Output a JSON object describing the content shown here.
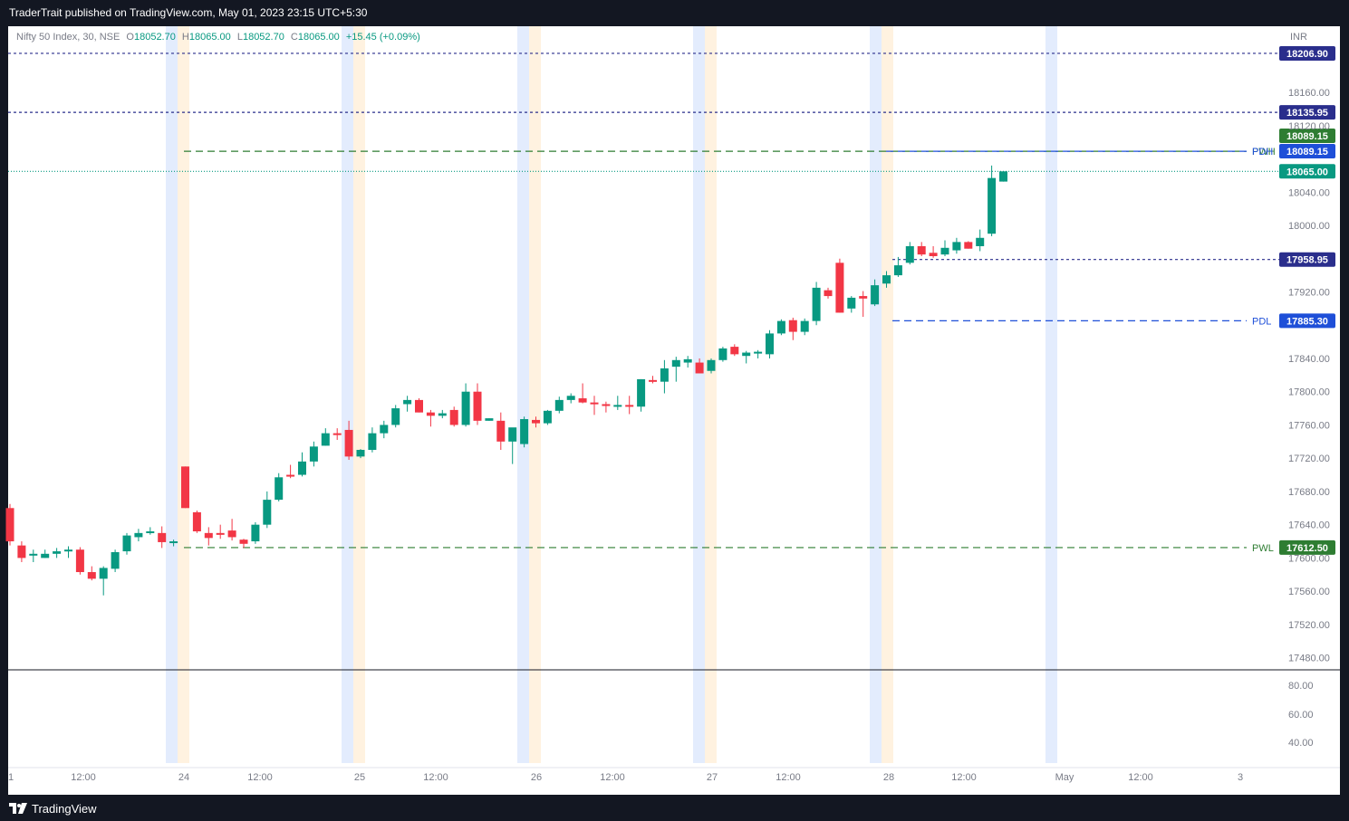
{
  "header": {
    "publisher_line": "TraderTrait published on TradingView.com, May 01, 2023 23:15 UTC+5:30"
  },
  "footer": {
    "brand": "TradingView",
    "logo_icon": "tradingview-logo-icon"
  },
  "legend": {
    "symbol": "Nifty 50 Index, 30, NSE",
    "open_label": "O",
    "open": "18052.70",
    "high_label": "H",
    "high": "18065.00",
    "low_label": "L",
    "low": "18052.70",
    "close_label": "C",
    "close": "18065.00",
    "change": "+15.45 (+0.09%)"
  },
  "price_scale": {
    "currency": "INR",
    "ticks": [
      "18160.00",
      "18120.00",
      "18040.00",
      "18000.00",
      "17920.00",
      "17840.00",
      "17800.00",
      "17760.00",
      "17720.00",
      "17680.00",
      "17640.00",
      "17600.00",
      "17560.00",
      "17520.00",
      "17480.00"
    ]
  },
  "oscillator_scale": {
    "ticks": [
      "80.00",
      "60.00",
      "40.00"
    ]
  },
  "time_axis": {
    "labels": [
      "1",
      "12:00",
      "24",
      "12:00",
      "25",
      "12:00",
      "26",
      "12:00",
      "27",
      "12:00",
      "28",
      "12:00",
      "May",
      "12:00",
      "3"
    ]
  },
  "levels": [
    {
      "name": "resistance-1",
      "price": 18206.9,
      "label": "",
      "badge": "18206.90",
      "color": "#2a2e8c",
      "style": "dotted"
    },
    {
      "name": "resistance-2",
      "price": 18135.95,
      "label": "",
      "badge": "18135.95",
      "color": "#2a2e8c",
      "style": "dotted"
    },
    {
      "name": "pwh",
      "price": 18089.15,
      "label": "PWH",
      "badge": "18089.15",
      "color": "#2e7d32",
      "style": "dashed"
    },
    {
      "name": "pdh",
      "price": 18089.15,
      "label": "PDH",
      "badge": "18089.15",
      "color": "#1e4fd8",
      "style": "dashed"
    },
    {
      "name": "last-price",
      "price": 18065.0,
      "label": "",
      "badge": "18065.00",
      "color": "#089981",
      "style": "dotted"
    },
    {
      "name": "support-1",
      "price": 17958.95,
      "label": "",
      "badge": "17958.95",
      "color": "#2a2e8c",
      "style": "dotted"
    },
    {
      "name": "pdl",
      "price": 17885.3,
      "label": "PDL",
      "badge": "17885.30",
      "color": "#1e4fd8",
      "style": "dashed"
    },
    {
      "name": "pwl",
      "price": 17612.5,
      "label": "PWL",
      "badge": "17612.50",
      "color": "#2e7d32",
      "style": "dashed"
    }
  ],
  "colors": {
    "up": "#089981",
    "down": "#f23645",
    "session_blue": "#e3ecfd",
    "session_orange": "#fff2e0"
  },
  "chart_data": {
    "type": "candlestick",
    "symbol": "Nifty 50 Index",
    "interval": "30",
    "exchange": "NSE",
    "ylim": [
      17460,
      18230
    ],
    "candles": [
      [
        17660,
        17665,
        17615,
        17620
      ],
      [
        17615,
        17620,
        17595,
        17600
      ],
      [
        17605,
        17610,
        17595,
        17605
      ],
      [
        17600,
        17610,
        17600,
        17605
      ],
      [
        17605,
        17612,
        17600,
        17608
      ],
      [
        17610,
        17614,
        17600,
        17610
      ],
      [
        17610,
        17613,
        17580,
        17583
      ],
      [
        17583,
        17590,
        17573,
        17575
      ],
      [
        17575,
        17590,
        17555,
        17588
      ],
      [
        17587,
        17610,
        17583,
        17607
      ],
      [
        17608,
        17630,
        17604,
        17627
      ],
      [
        17625,
        17635,
        17620,
        17630
      ],
      [
        17630,
        17637,
        17628,
        17632
      ],
      [
        17630,
        17638,
        17612,
        17619
      ],
      [
        17618,
        17622,
        17614,
        17620
      ],
      [
        17710,
        17710,
        17660,
        17660
      ],
      [
        17655,
        17657,
        17630,
        17632
      ],
      [
        17630,
        17637,
        17615,
        17624
      ],
      [
        17630,
        17640,
        17623,
        17628
      ],
      [
        17633,
        17647,
        17621,
        17625
      ],
      [
        17622,
        17623,
        17612,
        17617
      ],
      [
        17620,
        17643,
        17617,
        17640
      ],
      [
        17640,
        17680,
        17636,
        17670
      ],
      [
        17670,
        17702,
        17668,
        17697
      ],
      [
        17700,
        17712,
        17696,
        17698
      ],
      [
        17700,
        17727,
        17698,
        17716
      ],
      [
        17716,
        17740,
        17710,
        17734
      ],
      [
        17735,
        17756,
        17735,
        17750
      ],
      [
        17750,
        17756,
        17742,
        17748
      ],
      [
        17754,
        17765,
        17718,
        17722
      ],
      [
        17722,
        17731,
        17720,
        17730
      ],
      [
        17730,
        17757,
        17727,
        17750
      ],
      [
        17750,
        17765,
        17744,
        17760
      ],
      [
        17760,
        17784,
        17757,
        17780
      ],
      [
        17785,
        17795,
        17776,
        17790
      ],
      [
        17790,
        17792,
        17775,
        17775
      ],
      [
        17775,
        17778,
        17758,
        17771
      ],
      [
        17771,
        17778,
        17768,
        17774
      ],
      [
        17778,
        17782,
        17758,
        17760
      ],
      [
        17760,
        17810,
        17758,
        17800
      ],
      [
        17800,
        17810,
        17760,
        17765
      ],
      [
        17765,
        17768,
        17765,
        17768
      ],
      [
        17765,
        17775,
        17730,
        17740
      ],
      [
        17740,
        17752,
        17713,
        17757
      ],
      [
        17737,
        17770,
        17733,
        17767
      ],
      [
        17766,
        17770,
        17757,
        17762
      ],
      [
        17762,
        17778,
        17760,
        17777
      ],
      [
        17777,
        17794,
        17774,
        17790
      ],
      [
        17790,
        17798,
        17786,
        17795
      ],
      [
        17792,
        17810,
        17786,
        17787
      ],
      [
        17787,
        17795,
        17772,
        17785
      ],
      [
        17785,
        17788,
        17775,
        17783
      ],
      [
        17783,
        17795,
        17778,
        17784
      ],
      [
        17784,
        17795,
        17773,
        17782
      ],
      [
        17782,
        17815,
        17776,
        17815
      ],
      [
        17814,
        17819,
        17810,
        17812
      ],
      [
        17812,
        17838,
        17798,
        17828
      ],
      [
        17830,
        17842,
        17812,
        17838
      ],
      [
        17835,
        17843,
        17829,
        17839
      ],
      [
        17835,
        17840,
        17822,
        17822
      ],
      [
        17825,
        17840,
        17822,
        17838
      ],
      [
        17838,
        17854,
        17836,
        17852
      ],
      [
        17854,
        17857,
        17843,
        17845
      ],
      [
        17843,
        17849,
        17834,
        17847
      ],
      [
        17847,
        17850,
        17840,
        17848
      ],
      [
        17845,
        17874,
        17840,
        17870
      ],
      [
        17870,
        17887,
        17868,
        17885
      ],
      [
        17886,
        17889,
        17862,
        17872
      ],
      [
        17872,
        17888,
        17868,
        17885
      ],
      [
        17885,
        17932,
        17880,
        17925
      ],
      [
        17922,
        17925,
        17912,
        17915
      ],
      [
        17955,
        17960,
        17895,
        17895
      ],
      [
        17900,
        17915,
        17895,
        17913
      ],
      [
        17915,
        17921,
        17890,
        17912
      ],
      [
        17905,
        17935,
        17903,
        17928
      ],
      [
        17930,
        17945,
        17925,
        17940
      ],
      [
        17940,
        17962,
        17938,
        17952
      ],
      [
        17955,
        17980,
        17953,
        17975
      ],
      [
        17975,
        17980,
        17963,
        17965
      ],
      [
        17967,
        17975,
        17961,
        17963
      ],
      [
        17965,
        17982,
        17963,
        17973
      ],
      [
        17970,
        17985,
        17966,
        17980
      ],
      [
        17980,
        17981,
        17972,
        17972
      ],
      [
        17975,
        17995,
        17969,
        17985
      ],
      [
        17990,
        18072,
        17987,
        18057
      ],
      [
        18052.7,
        18065.0,
        18052.7,
        18065.0
      ]
    ]
  }
}
